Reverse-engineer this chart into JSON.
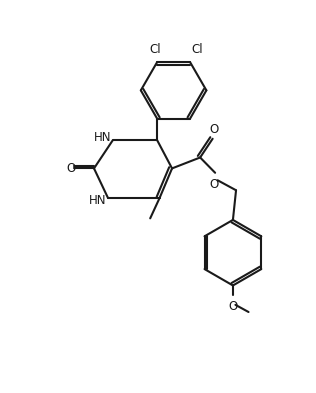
{
  "bg_color": "#ffffff",
  "line_color": "#1a1a1a",
  "line_width": 1.5,
  "font_size": 8.5,
  "figsize": [
    3.16,
    3.93
  ],
  "dpi": 100,
  "xlim": [
    0,
    10
  ],
  "ylim": [
    0,
    12.5
  ]
}
